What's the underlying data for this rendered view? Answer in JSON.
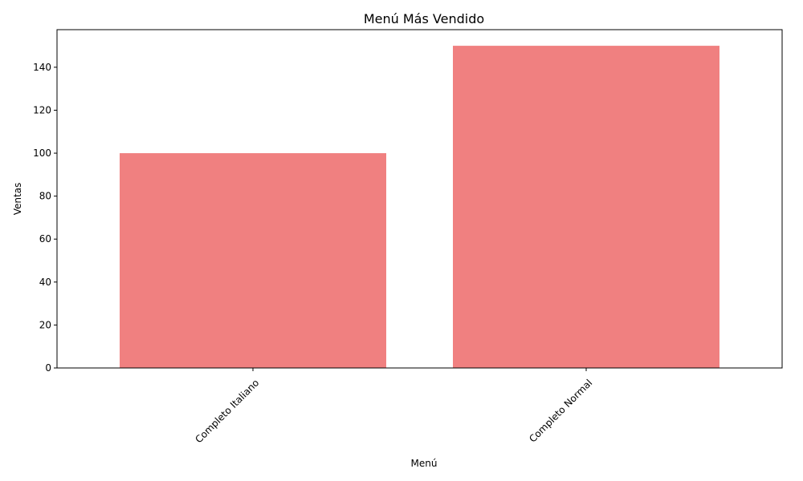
{
  "chart_data": {
    "type": "bar",
    "title": "Menú Más Vendido",
    "xlabel": "Menú",
    "ylabel": "Ventas",
    "categories": [
      "Completo Italiano",
      "Completo Normal"
    ],
    "values": [
      100,
      150
    ],
    "ylim": [
      0,
      157.5
    ],
    "yticks": [
      0,
      20,
      40,
      60,
      80,
      100,
      120,
      140
    ],
    "bar_color": "#f08080",
    "xtick_rotation": 45,
    "grid": false,
    "legend": "none"
  }
}
